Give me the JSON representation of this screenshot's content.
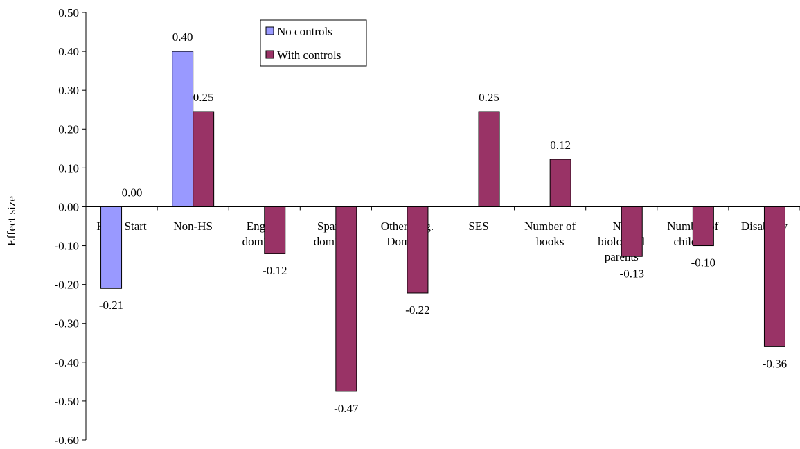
{
  "chart_data": {
    "type": "bar",
    "title": "",
    "xlabel": "",
    "ylabel": "Effect size",
    "ylim": [
      -0.6,
      0.5
    ],
    "yticks": [
      "0.50",
      "0.40",
      "0.30",
      "0.20",
      "0.10",
      "0.00",
      "-0.10",
      "-0.20",
      "-0.30",
      "-0.40",
      "-0.50",
      "-0.60"
    ],
    "grid": false,
    "legend_position": "top-center",
    "categories": [
      [
        "Head Start"
      ],
      [
        "Non-HS"
      ],
      [
        "English",
        "dominant"
      ],
      [
        "Spanish",
        "dominant"
      ],
      [
        "Other lang.",
        "Domiant"
      ],
      [
        "SES"
      ],
      [
        "Number of",
        "books"
      ],
      [
        "Not",
        "biological",
        "parents"
      ],
      [
        "Number of",
        "children"
      ],
      [
        "Disability"
      ]
    ],
    "series": [
      {
        "name": "No controls",
        "color": "#9999ff",
        "values": [
          -0.21,
          0.4,
          null,
          null,
          null,
          null,
          null,
          null,
          null,
          null
        ],
        "labels": [
          "-0.21",
          "0.40",
          null,
          null,
          null,
          null,
          null,
          null,
          null,
          null
        ]
      },
      {
        "name": "With controls",
        "color": "#993366",
        "values": [
          0.0,
          0.245,
          -0.12,
          -0.475,
          -0.222,
          0.245,
          0.122,
          -0.128,
          -0.1,
          -0.36
        ],
        "labels": [
          "0.00",
          "0.25",
          "-0.12",
          "-0.47",
          "-0.22",
          "0.25",
          "0.12",
          "-0.13",
          "-0.10",
          "-0.36"
        ]
      }
    ]
  }
}
